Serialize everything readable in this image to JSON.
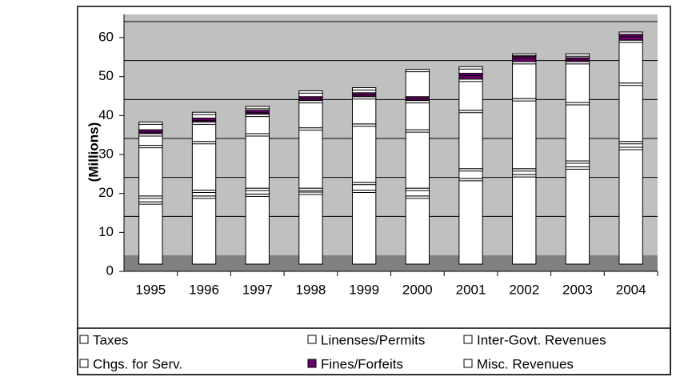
{
  "chart_data": {
    "type": "bar",
    "stacked": true,
    "y_label": "(Millions)",
    "categories": [
      "1995",
      "1996",
      "1997",
      "1998",
      "1999",
      "2000",
      "2001",
      "2002",
      "2003",
      "2004"
    ],
    "series": [
      {
        "name": "Taxes",
        "color": "#ffffff",
        "values": [
          16,
          17.5,
          18,
          18.5,
          19,
          17.5,
          22,
          23,
          25,
          30
        ]
      },
      {
        "name": "Linenses/Permits",
        "color": "#ffffff",
        "values": [
          1.5,
          1.5,
          1.5,
          1,
          2,
          2,
          2.5,
          1.5,
          1.5,
          1.5
        ]
      },
      {
        "name": "Inter-Govt. Revenues",
        "color": "#ffffff",
        "values": [
          13,
          12.5,
          14,
          15.5,
          15,
          15,
          15,
          18,
          15,
          15
        ]
      },
      {
        "name": "Chgs. for Serv.",
        "color": "#ffffff",
        "values": [
          3,
          5,
          5,
          7,
          7,
          7.5,
          8,
          9.5,
          10.5,
          11
        ]
      },
      {
        "name": "Fines/Forfeits",
        "color": "#660066",
        "values": [
          1,
          1,
          1,
          1,
          1,
          1,
          1.5,
          1.5,
          1,
          1.5
        ]
      },
      {
        "name": "Misc. Revenues",
        "color": "#ffffff",
        "values": [
          2,
          1.5,
          1,
          1.5,
          1.3,
          7,
          1.7,
          0.5,
          1,
          0.6
        ]
      }
    ],
    "ylim": [
      0,
      60
    ],
    "yticks": [
      0,
      10,
      20,
      30,
      40,
      50,
      60
    ],
    "grid": true
  }
}
